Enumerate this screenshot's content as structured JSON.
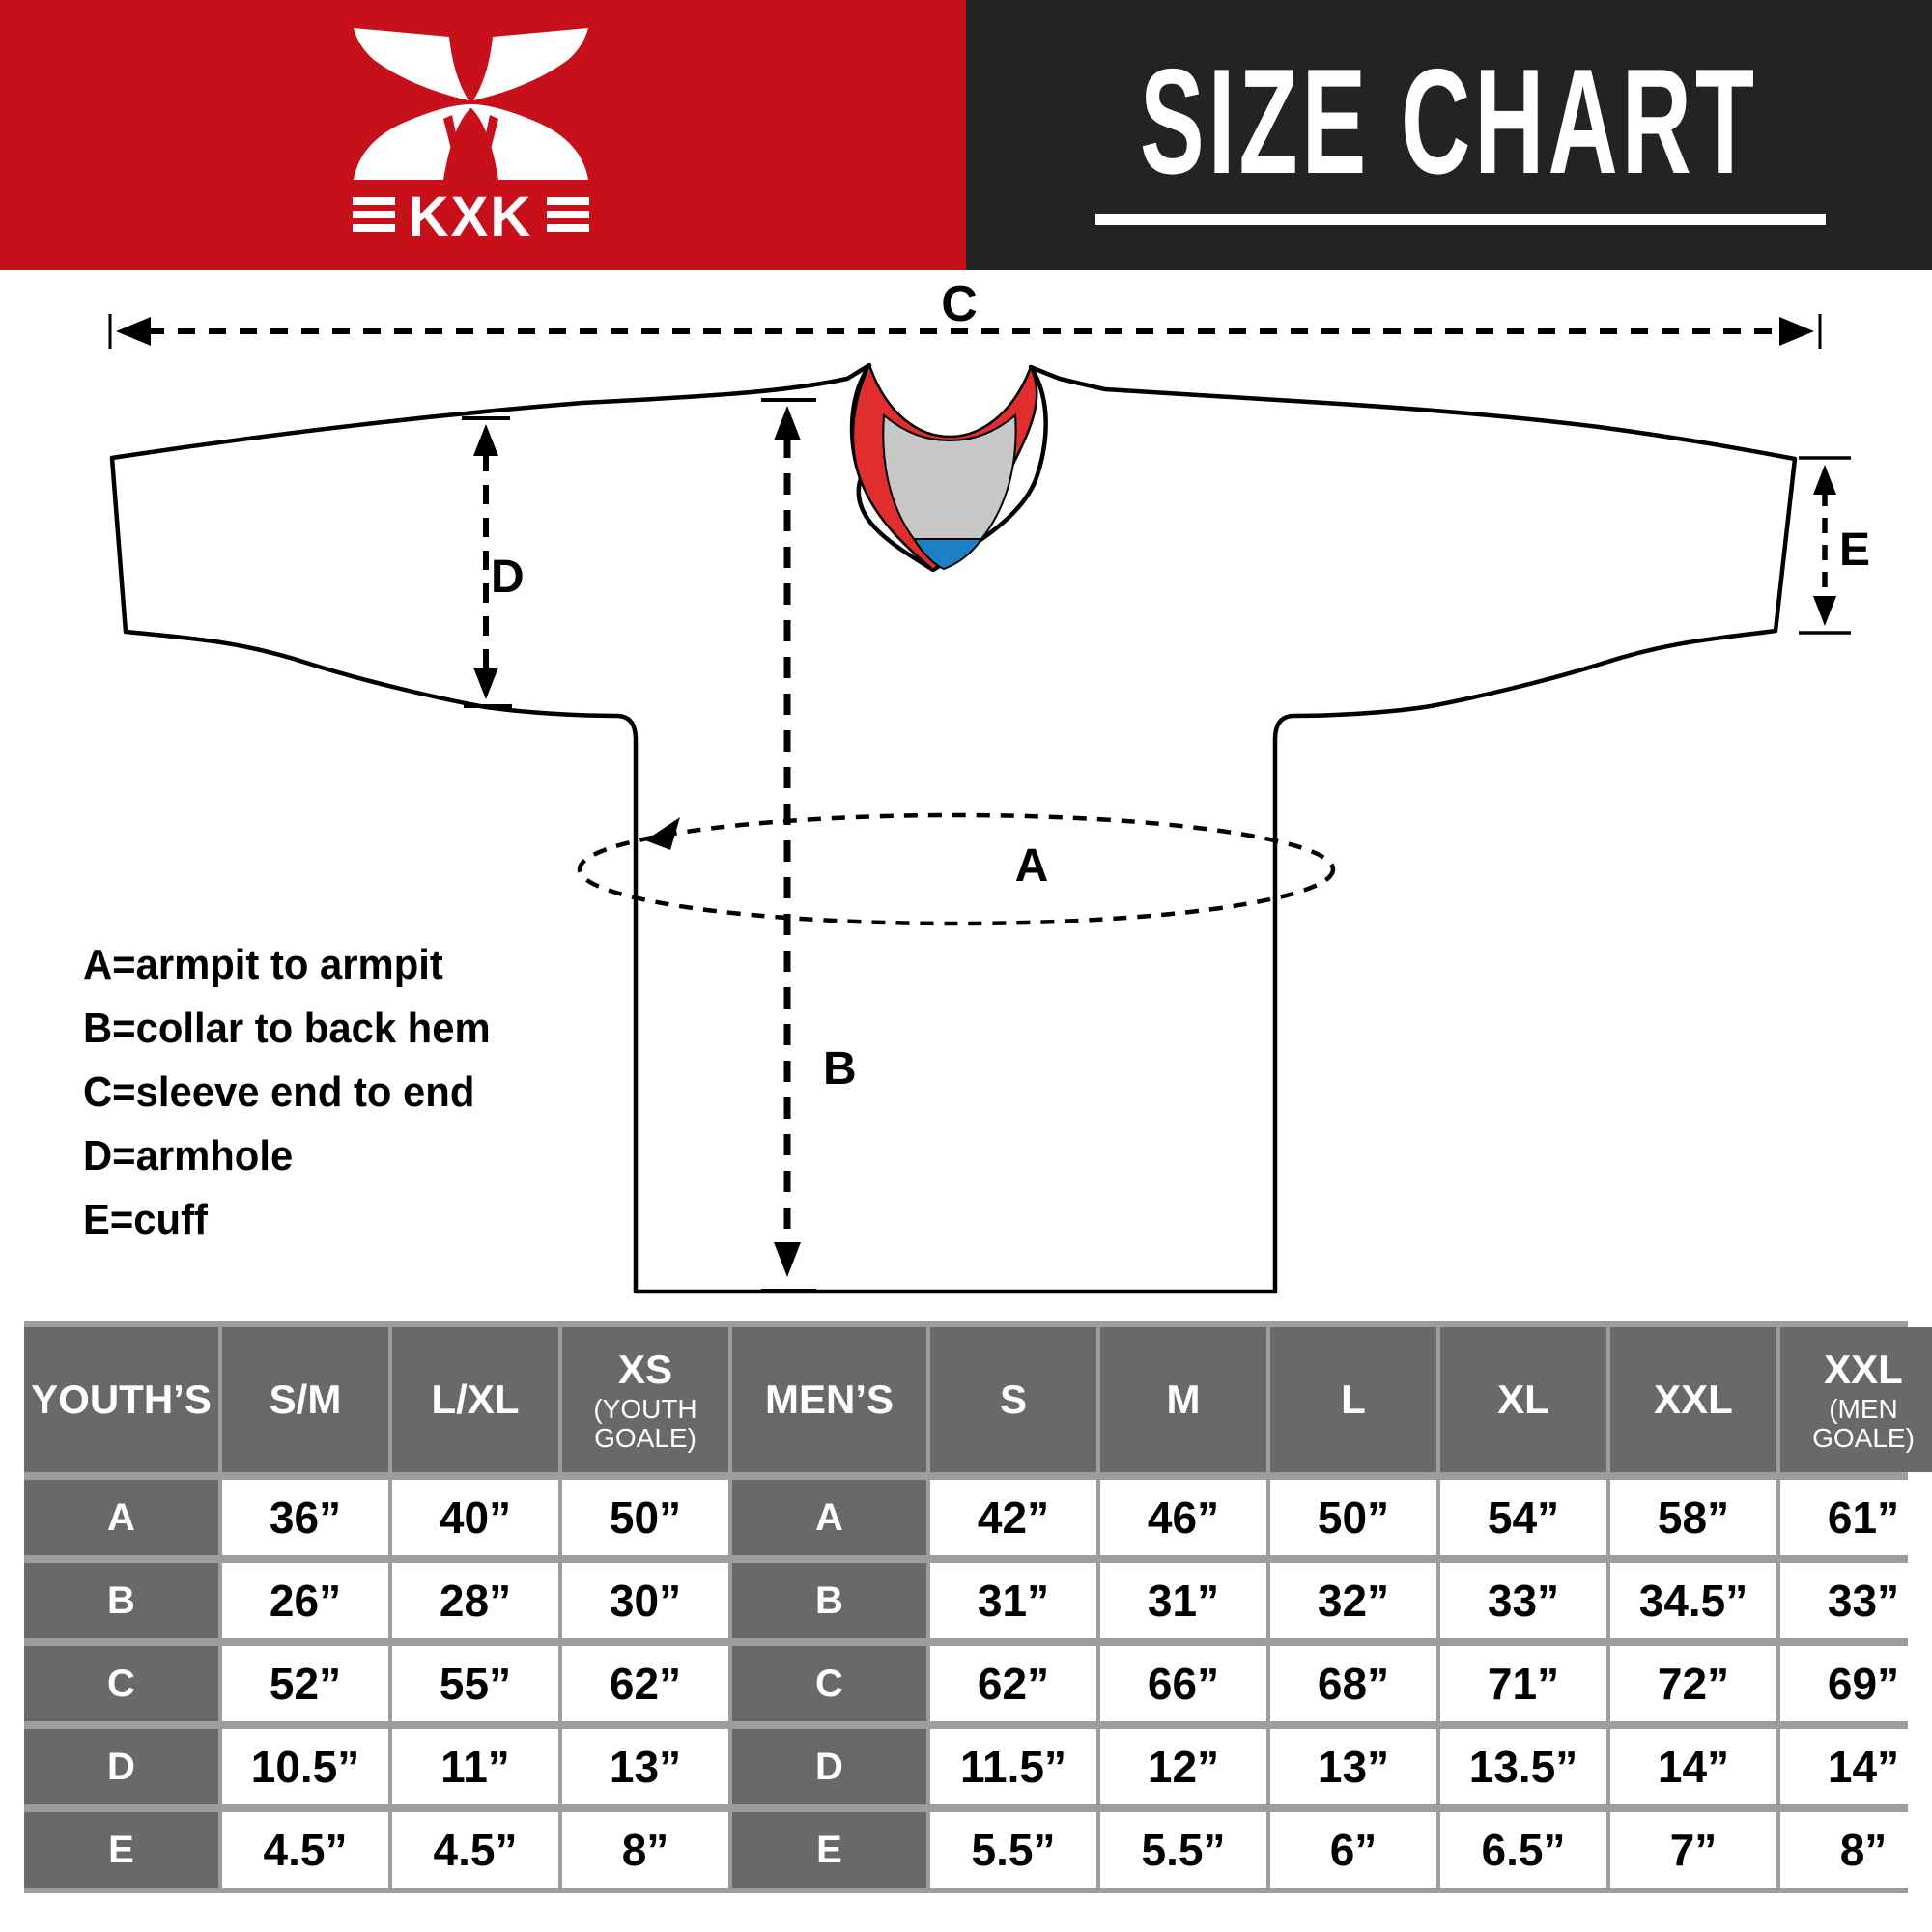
{
  "header": {
    "brand": "KXK",
    "title": "SIZE CHART"
  },
  "colors": {
    "red_band": "#C8101B",
    "black_band": "#232323",
    "collar_red": "#E02E2E",
    "collar_gray": "#C7C7C7",
    "collar_blue": "#1B80C4",
    "cell_dark": "#696969",
    "grid_gray": "#9D9D9D"
  },
  "diagram": {
    "measure_labels": {
      "a": "A",
      "b": "B",
      "c": "C",
      "d": "D",
      "e": "E"
    },
    "legend": [
      "A=armpit to armpit",
      "B=collar to back hem",
      "C=sleeve end to end",
      "D=armhole",
      "E=cuff"
    ]
  },
  "table": {
    "youth": {
      "group_label": "YOUTH’S",
      "columns": [
        {
          "label": "S/M",
          "sub": ""
        },
        {
          "label": "L/XL",
          "sub": ""
        },
        {
          "label": "XS",
          "sub": "(YOUTH GOALE)"
        }
      ]
    },
    "men": {
      "group_label": "MEN’S",
      "columns": [
        {
          "label": "S",
          "sub": ""
        },
        {
          "label": "M",
          "sub": ""
        },
        {
          "label": "L",
          "sub": ""
        },
        {
          "label": "XL",
          "sub": ""
        },
        {
          "label": "XXL",
          "sub": ""
        },
        {
          "label": "XXL",
          "sub": "(MEN GOALE)"
        }
      ]
    },
    "row_labels": [
      "A",
      "B",
      "C",
      "D",
      "E"
    ],
    "youth_values": {
      "A": [
        "36”",
        "40”",
        "50”"
      ],
      "B": [
        "26”",
        "28”",
        "30”"
      ],
      "C": [
        "52”",
        "55”",
        "62”"
      ],
      "D": [
        "10.5”",
        "11”",
        "13”"
      ],
      "E": [
        "4.5”",
        "4.5”",
        "8”"
      ]
    },
    "men_values": {
      "A": [
        "42”",
        "46”",
        "50”",
        "54”",
        "58”",
        "61”"
      ],
      "B": [
        "31”",
        "31”",
        "32”",
        "33”",
        "34.5”",
        "33”"
      ],
      "C": [
        "62”",
        "66”",
        "68”",
        "71”",
        "72”",
        "69”"
      ],
      "D": [
        "11.5”",
        "12”",
        "13”",
        "13.5”",
        "14”",
        "14”"
      ],
      "E": [
        "5.5”",
        "5.5”",
        "6”",
        "6.5”",
        "7”",
        "8”"
      ]
    }
  },
  "chart_data": {
    "type": "table",
    "title": "SIZE CHART",
    "measure_definitions": {
      "A": "armpit to armpit",
      "B": "collar to back hem",
      "C": "sleeve end to end",
      "D": "armhole",
      "E": "cuff"
    },
    "groups": [
      {
        "name": "YOUTH'S",
        "columns": [
          "S/M",
          "L/XL",
          "XS (YOUTH GOALE)"
        ],
        "rows": {
          "A": [
            "36\"",
            "40\"",
            "50\""
          ],
          "B": [
            "26\"",
            "28\"",
            "30\""
          ],
          "C": [
            "52\"",
            "55\"",
            "62\""
          ],
          "D": [
            "10.5\"",
            "11\"",
            "13\""
          ],
          "E": [
            "4.5\"",
            "4.5\"",
            "8\""
          ]
        }
      },
      {
        "name": "MEN'S",
        "columns": [
          "S",
          "M",
          "L",
          "XL",
          "XXL",
          "XXL (MEN GOALE)"
        ],
        "rows": {
          "A": [
            "42\"",
            "46\"",
            "50\"",
            "54\"",
            "58\"",
            "61\""
          ],
          "B": [
            "31\"",
            "31\"",
            "32\"",
            "33\"",
            "34.5\"",
            "33\""
          ],
          "C": [
            "62\"",
            "66\"",
            "68\"",
            "71\"",
            "72\"",
            "69\""
          ],
          "D": [
            "11.5\"",
            "12\"",
            "13\"",
            "13.5\"",
            "14\"",
            "14\""
          ],
          "E": [
            "5.5\"",
            "5.5\"",
            "6\"",
            "6.5\"",
            "7\"",
            "8\""
          ]
        }
      }
    ]
  }
}
